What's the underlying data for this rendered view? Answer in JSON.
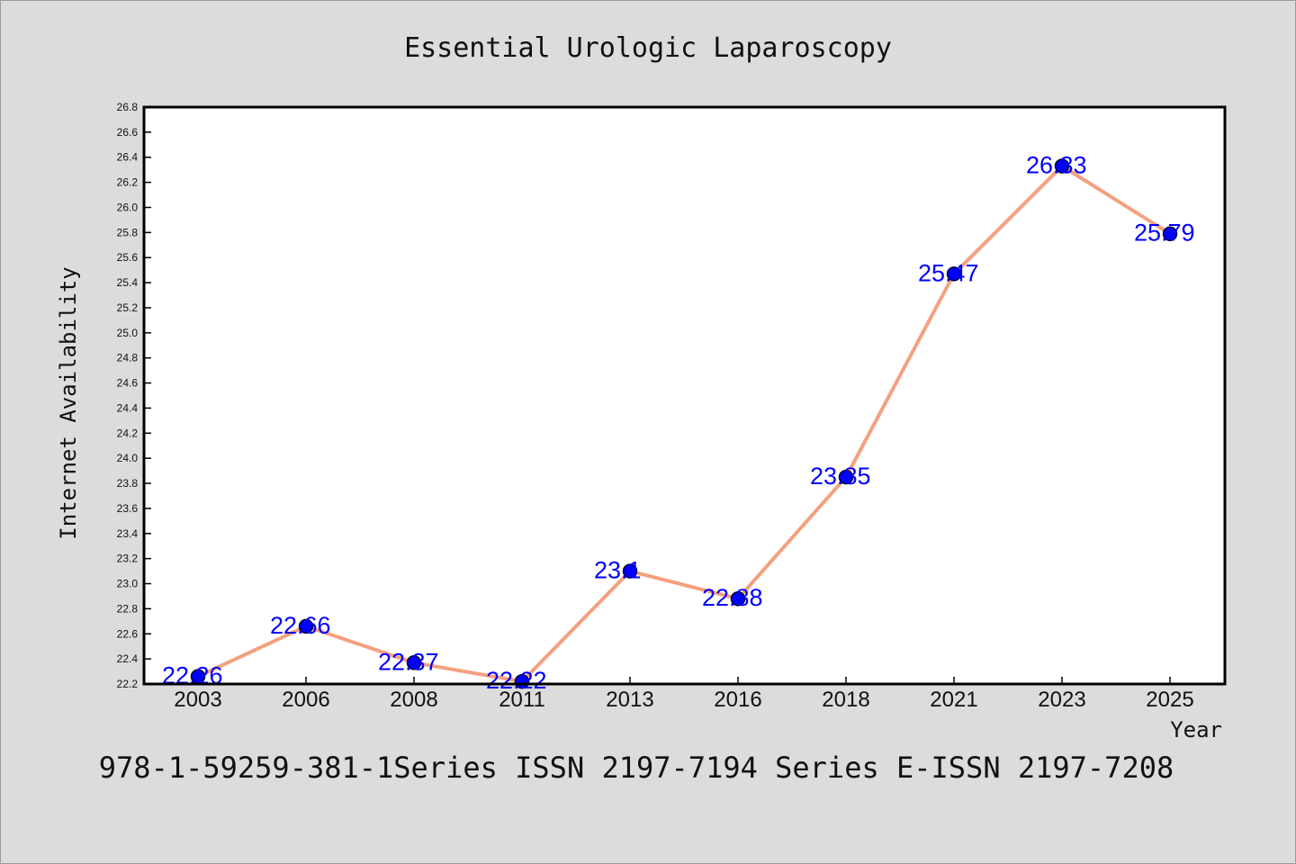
{
  "chart_data": {
    "type": "line",
    "title": "Essential Urologic Laparoscopy",
    "xlabel": "Year",
    "ylabel": "Internet Availability",
    "footer": "978-1-59259-381-1Series ISSN 2197-7194 Series E-ISSN 2197-7208",
    "categories": [
      "2003",
      "2006",
      "2008",
      "2011",
      "2013",
      "2016",
      "2018",
      "2021",
      "2023",
      "2025"
    ],
    "series": [
      {
        "values": [
          22.26,
          22.66,
          22.37,
          22.22,
          23.1,
          22.88,
          23.85,
          25.47,
          26.33,
          25.79
        ]
      }
    ],
    "data_labels": [
      "22.26",
      "22.66",
      "22.37",
      "22.22",
      "23.1",
      "22.88",
      "23.85",
      "25.47",
      "26.33",
      "25.79"
    ],
    "ylim": [
      22.2,
      26.8
    ],
    "yticks": [
      "22.2",
      "22.4",
      "22.6",
      "22.8",
      "23.0",
      "23.2",
      "23.4",
      "23.6",
      "23.8",
      "24.0",
      "24.2",
      "24.4",
      "24.6",
      "24.8",
      "25.0",
      "25.2",
      "25.4",
      "25.6",
      "25.8",
      "26.0",
      "26.2",
      "26.4",
      "26.6",
      "26.8"
    ],
    "grid": false,
    "legend": "none",
    "colors": {
      "line": "#f4a07f",
      "marker_fill": "#0000ff",
      "marker_edge": "#000033",
      "data_label": "#0000ff",
      "plot_bg": "#ffffff",
      "page_bg": "#dcdcdc"
    }
  }
}
